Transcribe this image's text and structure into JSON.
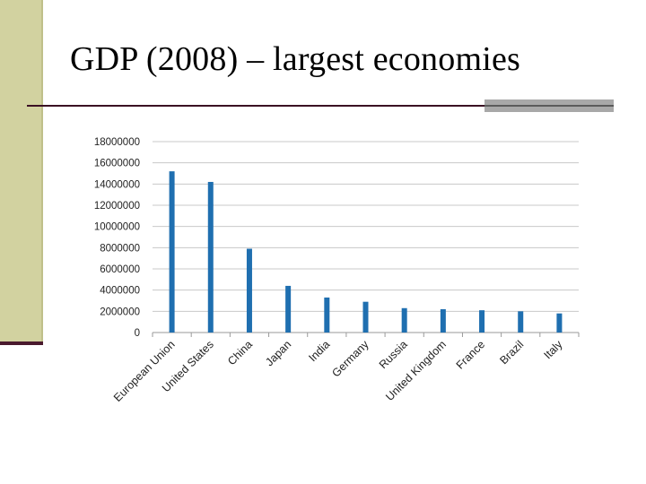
{
  "slide": {
    "title": "GDP (2008) – largest economies"
  },
  "colors": {
    "bar": "#1f6fb0",
    "sidebar": "#d2d2a0",
    "rule": "#3a0f22",
    "rule_accent": "#a8a8a8"
  },
  "chart_data": {
    "type": "bar",
    "title": "",
    "xlabel": "",
    "ylabel": "",
    "ylim": [
      0,
      18000000
    ],
    "yticks": [
      0,
      2000000,
      4000000,
      6000000,
      8000000,
      10000000,
      12000000,
      14000000,
      16000000,
      18000000
    ],
    "ytick_labels": [
      "0",
      "2000000",
      "4000000",
      "6000000",
      "8000000",
      "10000000",
      "12000000",
      "14000000",
      "16000000",
      "18000000"
    ],
    "grid": true,
    "legend": "none",
    "categories": [
      "European Union",
      "United States",
      "China",
      "Japan",
      "India",
      "Germany",
      "Russia",
      "United Kingdom",
      "France",
      "Brazil",
      "Italy"
    ],
    "values": [
      15200000,
      14200000,
      7900000,
      4400000,
      3300000,
      2900000,
      2300000,
      2200000,
      2100000,
      2000000,
      1800000
    ]
  }
}
